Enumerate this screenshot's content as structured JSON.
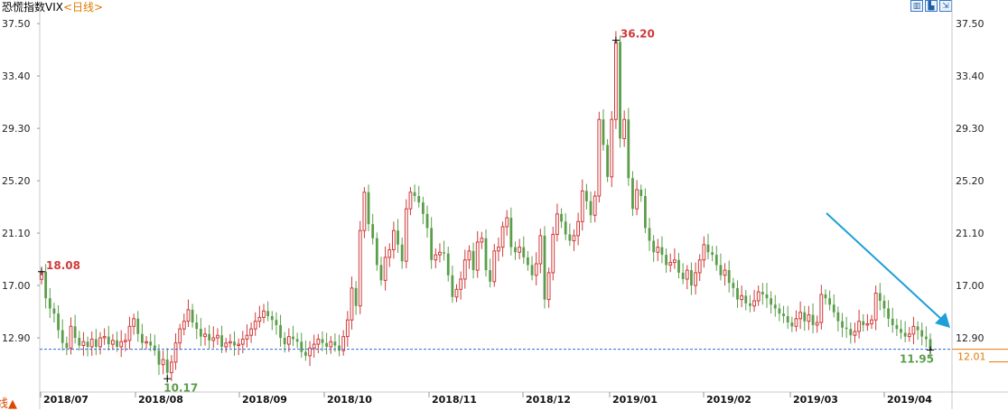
{
  "title": {
    "name": "恐慌指数VIX",
    "period": "<日线>"
  },
  "toolbar": {
    "icons": [
      "chart-type-icon",
      "indicator-icon",
      "export-icon"
    ]
  },
  "tab": {
    "label": "线▲"
  },
  "colors": {
    "up": "#d03a3a",
    "down": "#5a9e4a",
    "arrow": "#1e9fd8",
    "ref_line": "#2f6bd1",
    "last_price": "#e07b00"
  },
  "chart_data": {
    "type": "candlestick",
    "ylim": [
      8.8,
      38.5
    ],
    "yticks": [
      "37.50",
      "33.40",
      "29.30",
      "25.20",
      "21.10",
      "17.00",
      "12.90"
    ],
    "xlabels": [
      "2018/07",
      "2018/08",
      "2018/09",
      "2018/10",
      "2018/11",
      "2018/12",
      "2019/01",
      "2019/02",
      "2019/03",
      "2019/04"
    ],
    "last_price": "12.01",
    "annotations": [
      {
        "label": "18.08",
        "kind": "high"
      },
      {
        "label": "36.20",
        "kind": "high"
      },
      {
        "label": "10.17",
        "kind": "low"
      },
      {
        "label": "11.95",
        "kind": "low"
      }
    ],
    "closes": [
      18.08,
      16.0,
      15.2,
      14.8,
      13.5,
      12.5,
      12.1,
      13.8,
      12.9,
      12.3,
      12.6,
      12.2,
      12.8,
      12.2,
      12.9,
      13.0,
      12.4,
      12.7,
      12.2,
      12.6,
      12.7,
      13.8,
      14.4,
      13.2,
      12.5,
      12.6,
      12.3,
      11.9,
      10.8,
      11.2,
      10.17,
      11.0,
      12.5,
      13.6,
      14.2,
      15.1,
      14.1,
      13.6,
      13.0,
      13.2,
      12.7,
      12.9,
      13.1,
      12.2,
      12.5,
      12.6,
      12.3,
      12.4,
      12.8,
      13.1,
      13.6,
      14.2,
      14.5,
      15.0,
      14.6,
      14.3,
      13.9,
      12.9,
      12.4,
      13.0,
      12.8,
      12.6,
      11.8,
      11.5,
      12.1,
      12.4,
      12.8,
      12.5,
      12.2,
      12.6,
      12.3,
      11.9,
      13.0,
      14.3,
      16.8,
      15.4,
      21.3,
      24.3,
      21.8,
      20.7,
      18.6,
      17.4,
      19.2,
      19.8,
      21.3,
      20.2,
      18.9,
      23.0,
      24.3,
      24.0,
      23.5,
      22.6,
      21.5,
      19.0,
      19.4,
      19.6,
      19.5,
      17.8,
      16.1,
      16.7,
      17.5,
      19.0,
      19.7,
      18.2,
      20.4,
      20.7,
      18.2,
      17.3,
      19.7,
      20.0,
      21.6,
      22.3,
      20.0,
      19.6,
      20.0,
      19.2,
      18.6,
      17.8,
      18.7,
      20.9,
      15.9,
      18.0,
      21.0,
      22.6,
      22.0,
      21.0,
      20.5,
      20.9,
      22.0,
      24.4,
      23.6,
      22.5,
      24.0,
      30.0,
      28.0,
      25.5,
      30.0,
      36.07,
      28.5,
      30.0,
      25.4,
      23.0,
      24.5,
      24.0,
      21.5,
      20.5,
      19.6,
      20.0,
      19.4,
      18.6,
      18.8,
      19.0,
      18.0,
      17.5,
      18.2,
      17.0,
      18.0,
      19.0,
      20.2,
      19.6,
      19.4,
      18.6,
      17.8,
      18.2,
      17.2,
      16.8,
      15.9,
      16.2,
      15.6,
      15.4,
      15.8,
      16.5,
      16.3,
      16.0,
      15.5,
      15.2,
      14.8,
      14.6,
      14.1,
      13.8,
      14.4,
      14.9,
      14.2,
      14.7,
      13.9,
      14.1,
      16.3,
      16.0,
      15.5,
      14.9,
      14.2,
      13.7,
      13.6,
      13.1,
      13.4,
      14.2,
      13.9,
      14.0,
      14.3,
      16.4,
      15.8,
      15.2,
      14.4,
      13.9,
      13.6,
      13.3,
      13.0,
      13.2,
      13.8,
      13.5,
      13.0,
      12.8,
      12.01
    ]
  }
}
